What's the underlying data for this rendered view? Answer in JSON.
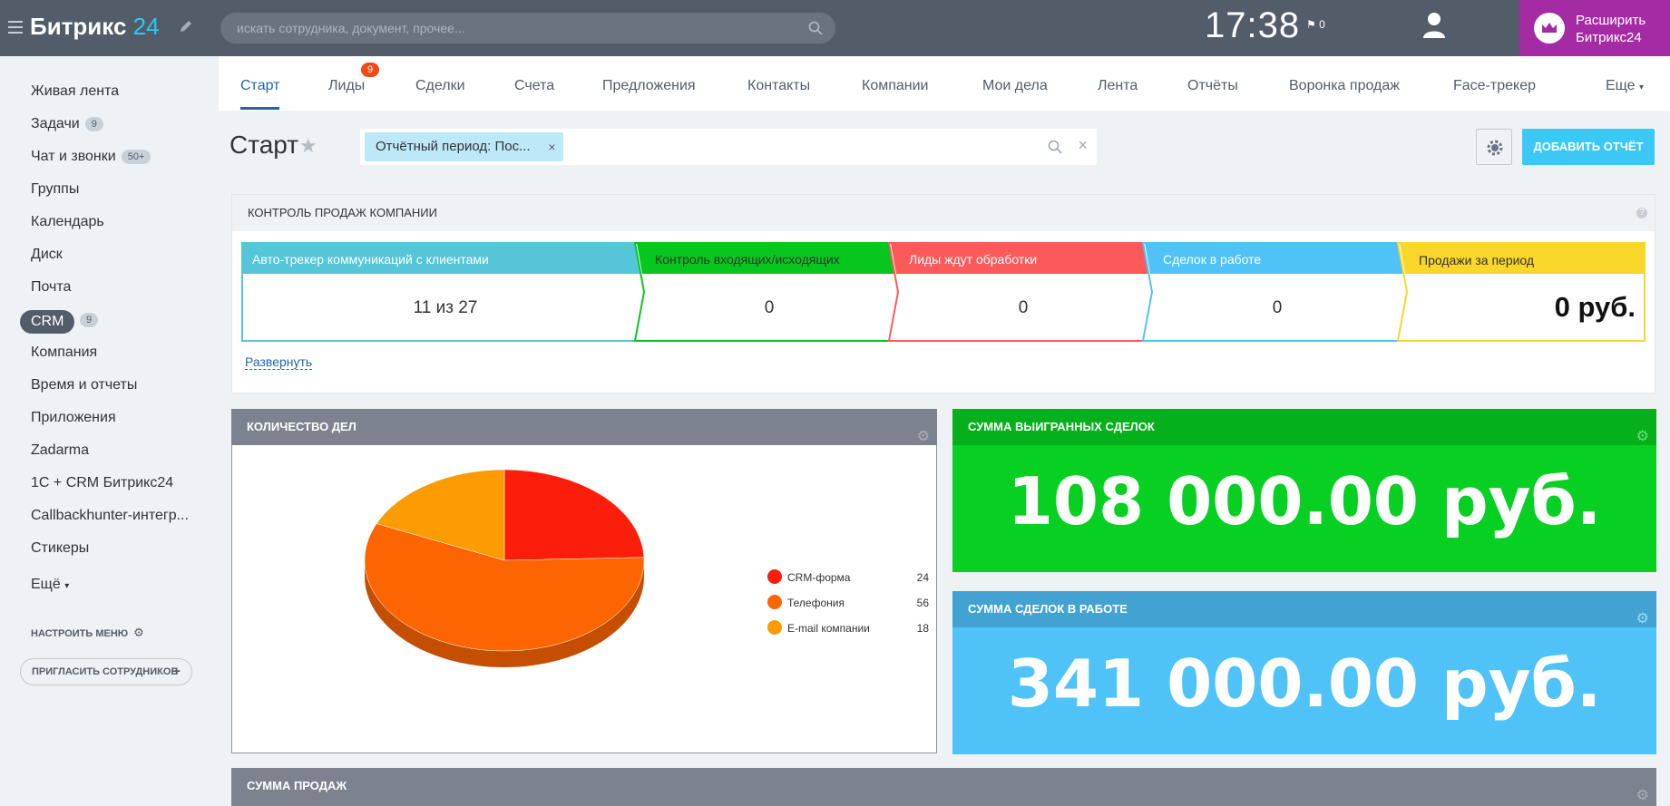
{
  "header": {
    "logo_text": "Битрикс",
    "logo_num": "24",
    "search_placeholder": "искать сотрудника, документ, прочее...",
    "clock": "17:38",
    "flag_count": "0",
    "upgrade_line1": "Расширить",
    "upgrade_line2": "Битрикс24",
    "upgrade_color": "#a52ba4"
  },
  "sidebar": {
    "items": [
      {
        "label": "Живая лента"
      },
      {
        "label": "Задачи",
        "counter": "9"
      },
      {
        "label": "Чат и звонки",
        "counter": "50+"
      },
      {
        "label": "Группы"
      },
      {
        "label": "Календарь"
      },
      {
        "label": "Диск"
      },
      {
        "label": "Почта"
      },
      {
        "label": "CRM",
        "counter": "9"
      },
      {
        "label": "Компания"
      },
      {
        "label": "Время и отчеты"
      },
      {
        "label": "Приложения"
      },
      {
        "label": "Zadarma"
      },
      {
        "label": "1С + CRM Битрикс24"
      },
      {
        "label": "Callbackhunter-интегр..."
      },
      {
        "label": "Стикеры"
      },
      {
        "label": "Ещё"
      }
    ],
    "settings_label": "НАСТРОИТЬ МЕНЮ",
    "invite_label": "ПРИГЛАСИТЬ СОТРУДНИКОВ"
  },
  "tabs": [
    {
      "label": "Старт"
    },
    {
      "label": "Лиды",
      "badge": "9"
    },
    {
      "label": "Сделки"
    },
    {
      "label": "Счета"
    },
    {
      "label": "Предложения"
    },
    {
      "label": "Контакты"
    },
    {
      "label": "Компании"
    },
    {
      "label": "Мои дела"
    },
    {
      "label": "Лента"
    },
    {
      "label": "Отчёты"
    },
    {
      "label": "Воронка продаж"
    },
    {
      "label": "Face-трекер"
    },
    {
      "label": "Еще"
    }
  ],
  "page": {
    "title": "Старт",
    "filter_chip": "Отчётный период: Пос...",
    "add_report": "ДОБАВИТЬ ОТЧЁТ"
  },
  "sales_control": {
    "title": "КОНТРОЛЬ ПРОДАЖ КОМПАНИИ",
    "help": "?",
    "expand": "Развернуть",
    "stages": [
      {
        "label": "Авто-трекер коммуникаций с клиентами",
        "value": "11 из 27",
        "color": "#55c5d8"
      },
      {
        "label": "Контроль входящих/исходящих",
        "value": "0",
        "color": "#07c71f"
      },
      {
        "label": "Лиды ждут обработки",
        "value": "0",
        "color": "#fc5a5a"
      },
      {
        "label": "Сделок в работе",
        "value": "0",
        "color": "#4fc3f7"
      },
      {
        "label": "Продажи за период",
        "value": "0 руб.",
        "color": "#f9d72a"
      }
    ]
  },
  "activities_card": {
    "title": "КОЛИЧЕСТВО ДЕЛ",
    "legend": [
      {
        "label": "CRM-форма",
        "value": "24",
        "color": "#fb1e0a"
      },
      {
        "label": "Телефония",
        "value": "56",
        "color": "#fd6402"
      },
      {
        "label": "E-mail компании",
        "value": "18",
        "color": "#fc9b02"
      }
    ]
  },
  "chart_data": {
    "type": "pie",
    "categories": [
      "CRM-форма",
      "Телефония",
      "E-mail компании"
    ],
    "values": [
      24,
      56,
      18
    ],
    "colors": [
      "#fb1e0a",
      "#fd6402",
      "#fc9b02"
    ]
  },
  "won_card": {
    "title": "СУММА ВЫИГРАННЫХ СДЕЛОК",
    "value": "108 000.00 руб."
  },
  "inwork_card": {
    "title": "СУММА СДЕЛОК В РАБОТЕ",
    "value": "341 000.00 руб."
  },
  "sales_sum_card": {
    "title": "СУММА ПРОДАЖ"
  }
}
